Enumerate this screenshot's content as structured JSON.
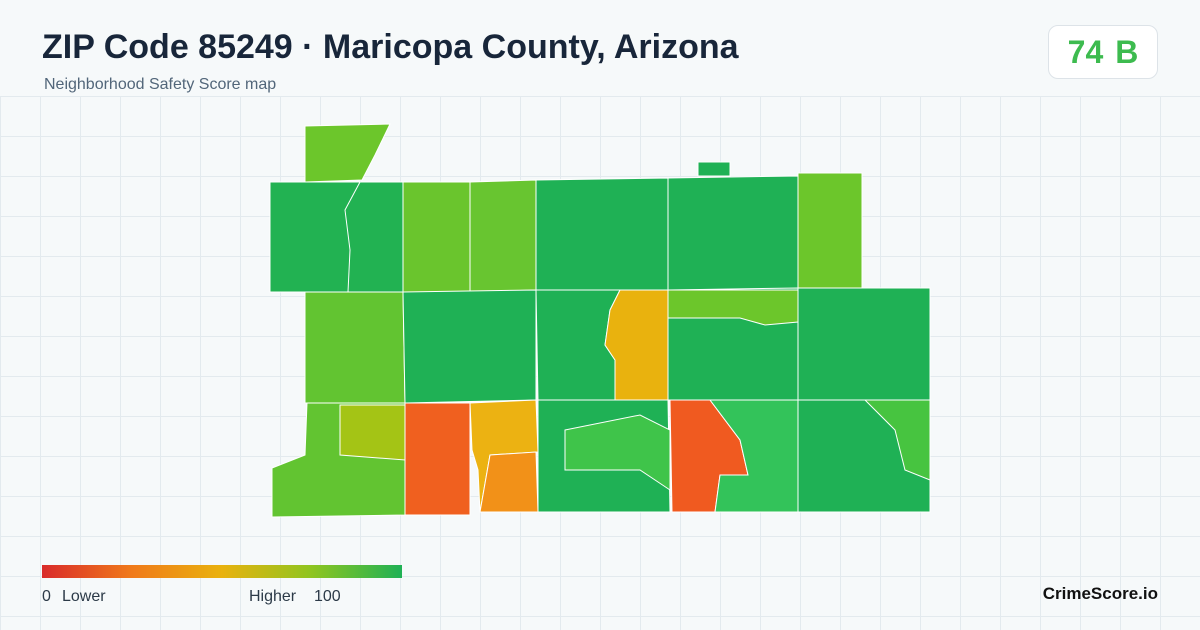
{
  "header": {
    "title": "ZIP Code 85249 · Maricopa County, Arizona",
    "subtitle": "Neighborhood Safety Score map"
  },
  "score": {
    "value": "74",
    "grade": "B"
  },
  "legend": {
    "min": "0",
    "min_label": "Lower",
    "max_label": "Higher",
    "max": "100"
  },
  "brand": "CrimeScore.io"
}
